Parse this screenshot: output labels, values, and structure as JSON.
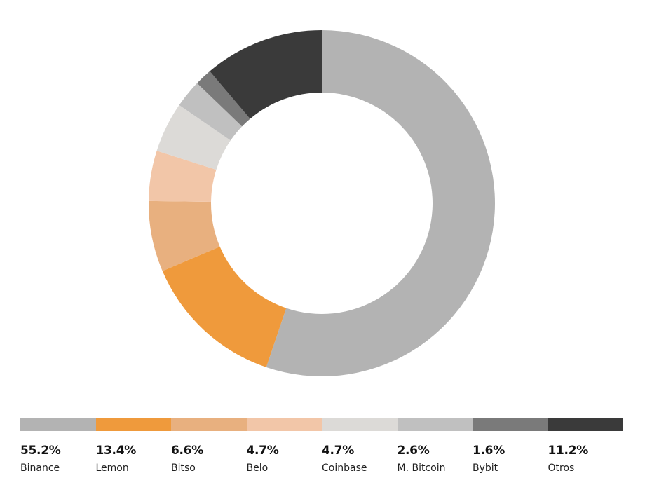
{
  "chart_data": {
    "type": "donut",
    "title": "",
    "unit": "%",
    "categories": [
      "Binance",
      "Lemon",
      "Bitso",
      "Belo",
      "Coinbase",
      "M. Bitcoin",
      "Bybit",
      "Otros"
    ],
    "values": [
      55.2,
      13.4,
      6.6,
      4.7,
      4.7,
      2.6,
      1.6,
      11.2
    ],
    "value_labels": [
      "55.2%",
      "13.4%",
      "6.6%",
      "4.7%",
      "4.7%",
      "2.6%",
      "1.6%",
      "11.2%"
    ],
    "colors": [
      "#b3b3b3",
      "#ef9a3c",
      "#e8b07f",
      "#f2c6a8",
      "#dcdad7",
      "#c0c0c0",
      "#7a7a7a",
      "#3a3a3a"
    ],
    "legend_position": "bottom"
  }
}
